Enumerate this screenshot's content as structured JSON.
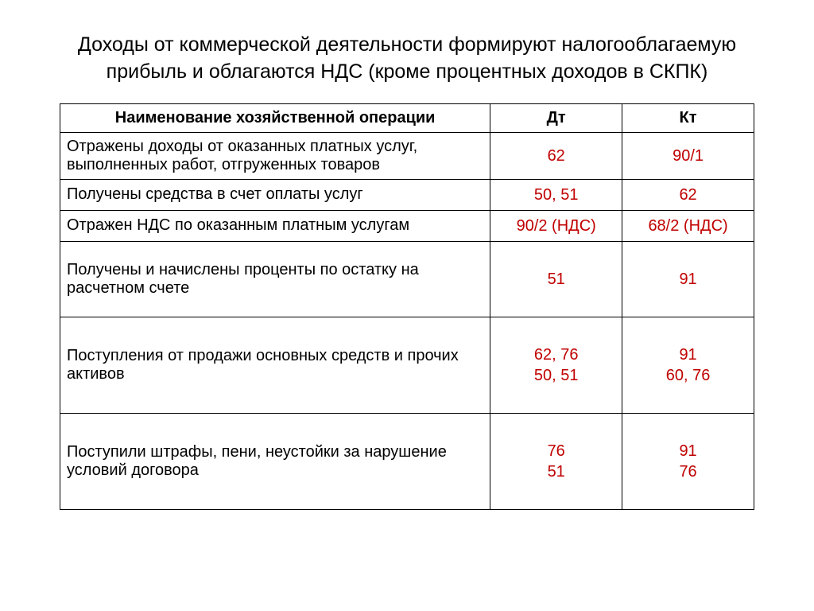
{
  "title": "Доходы от коммерческой деятельности формируют налогооблагаемую прибыль и облагаются НДС (кроме процентных доходов в СКПК)",
  "table": {
    "columns": [
      "Наименование хозяйственной операции",
      "Дт",
      "Кт"
    ],
    "column_widths_pct": [
      62,
      19,
      19
    ],
    "header_bold": true,
    "border_color": "#000000",
    "text_color": "#000000",
    "account_color": "#c00000",
    "fontsize": 20,
    "rows": [
      {
        "desc": "Отражены доходы от оказанных платных услуг, выполненных работ, отгруженных товаров",
        "dt": "62",
        "kt": "90/1",
        "row_height": "normal"
      },
      {
        "desc": "Получены средства в счет оплаты услуг",
        "dt": "50, 51",
        "kt": "62",
        "row_height": "slim"
      },
      {
        "desc": "Отражен НДС по оказанным платным услугам",
        "dt": "90/2 (НДС)",
        "kt": "68/2 (НДС)",
        "row_height": "slim"
      },
      {
        "desc": "Получены и начислены проценты по остатку на расчетном счете",
        "dt": "51",
        "kt": "91",
        "row_height": "tall"
      },
      {
        "desc": "Поступления от продажи основных средств и прочих активов",
        "dt": "62, 76\n50, 51",
        "kt": "91\n60, 76",
        "row_height": "taller"
      },
      {
        "desc": "Поступили штрафы, пени, неустойки за нарушение условий договора",
        "dt": "76\n51",
        "kt": "91\n76",
        "row_height": "taller"
      }
    ]
  },
  "background_color": "#ffffff",
  "title_fontsize": 25,
  "title_color": "#000000"
}
